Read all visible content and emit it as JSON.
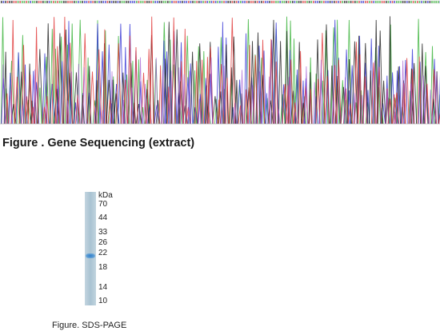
{
  "sequencing": {
    "caption": "Figure . Gene Sequencing (extract)",
    "trace_colors": {
      "A": "#3cb43c",
      "C": "#3a3ad6",
      "G": "#222222",
      "T": "#e03a3a",
      "N": "#9b4fd0"
    }
  },
  "sds_page": {
    "caption": "Figure. SDS-PAGE",
    "unit_label": "kDa",
    "markers": [
      "70",
      "44",
      "33",
      "26",
      "22",
      "18",
      "14",
      "10"
    ],
    "band_color": "#2f7ec9"
  }
}
